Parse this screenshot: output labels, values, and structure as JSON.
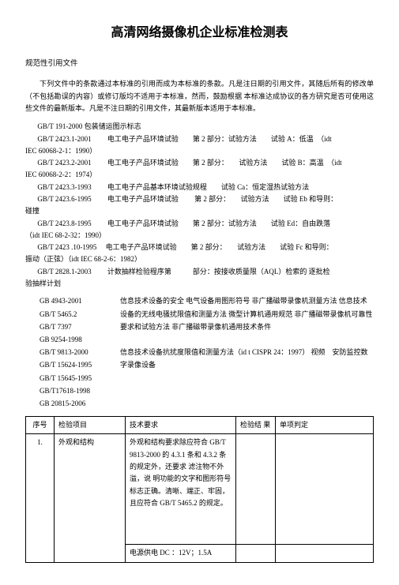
{
  "title": "高清网络摄像机企业标准检测表",
  "section_label": "规范性引用文件",
  "intro": "下列文件中的条款通过本标准的引用而成为本标准的条款。凡是注日期的引用文件，其随后所有的修改单（不包括勘误的内容）或修订版均不适用于本标准，然而，鼓励根据 本标准达成协议的各方研究是否可使用这些文件的最新版本。凡是不注日期的引用文件，其最新版本适用于本标准。",
  "std_lines": [
    "GB/T 191-2000 包装储运图示标志",
    "GB/T 2423.1-2001 　　电工电子产品环境试验　　第 2 部分：试验方法　　试验 A：低温　（idt",
    "IEC 60068-2-1：1990）",
    "GB/T 2423.2-2001 　　电工电子产品环境试验　　第 2 部分：　　试验方法　　试验 B：高温　（idt",
    "IEC 60068-2-2：1974）",
    "GB/T 2423.3-1993 　　电工电子产品基本环境试验规程　　试验 Ca：恒定湿热试验方法",
    "GB/T 2423.6-1995　　 电工电子产品环境试验　　 第 2 部分：　　试验方法　　试验 Eb 和导则：",
    "碰撞",
    "GB/T 2423.8-1995 　　电工电子产品环境试验　　第 2 部分：试验方法　　试验 Ed：自由跌落",
    "（idt IEC 68-2-32：1990）",
    "GB/T 2423 .10-1995 　电工电子产品环境试验　　第 2 部分：　　试验方法　　试验 Fc 和导则：",
    "振动（正弦）（idt IEC 68-2-6：1982）",
    "GB/T 2828.1-2003　　 计数抽样检验程序第　　　部分：按接收质量限（AQL）检索的 逐批检",
    "验抽样计划"
  ],
  "two_col_left": [
    "GB 4943-2001",
    "GB/T 5465.2",
    "GB/T 7397",
    "GB 9254-1998",
    "GB/T 9813-2000",
    "GB/T 15624-1995",
    "GB/T 15645-1995",
    "GB/T17618-1998",
    "GB 20815-2006"
  ],
  "two_col_right": "信息技术设备的安全 电气设备用图形符号 非广播磁带录像机测量方法 信息技术设备的无线电骚扰限值和测量方法 微型计算机通用规范 非广播磁带录像机可靠性要求和试验方法 非广播磁带录像机通用技术条件\n　\n信息技术设备抗扰度限值和测量方法（id t CISPR 24：1997） 视频　安防监控数字录像设备",
  "tbl": {
    "headers": [
      "序号",
      "检验项目",
      "技术要求",
      "检验结 果",
      "单项判定"
    ],
    "row1": {
      "idx": "1.",
      "item": "外观和结构",
      "req": "外观和结构要求除应符合 GB/T 9813-2000 的 4.3.1 条和 4.3.2 条的规定外，还要求 滤注物不外溢，说 明功能的文字和图形符号 标志正确。清晰、端正、牢固，且应符合 GB/T 5465.2 的规定。",
      "req2": "电源供电 DC ：12V；1.5A"
    }
  }
}
